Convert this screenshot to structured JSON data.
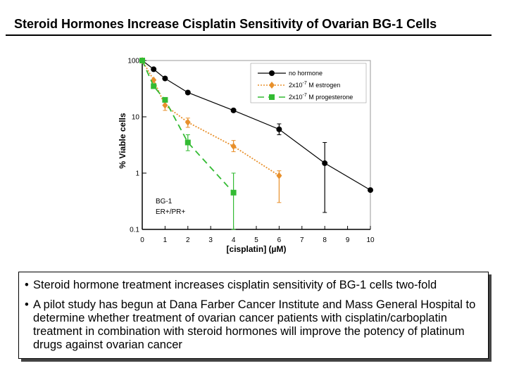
{
  "slide": {
    "title": "Steroid Hormones Increase Cisplatin Sensitivity of Ovarian BG-1 Cells"
  },
  "chart_data": {
    "type": "line",
    "title": "",
    "xlabel": "[cisplatin] (µM)",
    "ylabel": "% Viable cells",
    "y_scale": "log",
    "xlim": [
      0,
      10
    ],
    "ylim": [
      0.1,
      100
    ],
    "x_ticks": [
      "0",
      "1",
      "2",
      "3",
      "4",
      "5",
      "6",
      "7",
      "8",
      "9",
      "10"
    ],
    "y_ticks": [
      "0.1",
      "1",
      "10",
      "100"
    ],
    "annotation": {
      "line1": "BG-1",
      "line2": "ER+/PR+"
    },
    "series": [
      {
        "name": "no hormone",
        "color": "#000000",
        "marker": "circle",
        "dash": "solid",
        "legend_text": "no hormone",
        "x": [
          0,
          0.5,
          1,
          2,
          4,
          6,
          8,
          10
        ],
        "y": [
          100,
          70,
          48,
          27,
          13,
          6,
          1.5,
          0.5
        ],
        "err_low": [
          null,
          null,
          null,
          null,
          null,
          4.8,
          0.2,
          null
        ],
        "err_high": [
          null,
          null,
          null,
          null,
          null,
          7.5,
          3.5,
          null
        ]
      },
      {
        "name": "2x10-7 M estrogen",
        "color": "#E8902B",
        "marker": "diamond",
        "dash": "dotted",
        "legend_text": "2x10",
        "legend_exp": "-7",
        "legend_unit": "M estrogen",
        "x": [
          0,
          0.5,
          1,
          2,
          4,
          6
        ],
        "y": [
          100,
          45,
          16,
          8,
          3,
          0.9
        ],
        "err_low": [
          null,
          null,
          13,
          6.5,
          2.4,
          0.3
        ],
        "err_high": [
          null,
          null,
          19,
          9.5,
          3.8,
          1.1
        ]
      },
      {
        "name": "2x10-7 M progesterone",
        "color": "#33BB33",
        "marker": "square",
        "dash": "dashed",
        "legend_text": "2x10",
        "legend_exp": "-7",
        "legend_unit": "M progesterone",
        "x": [
          0,
          0.5,
          1,
          2,
          4
        ],
        "y": [
          100,
          35,
          20,
          3.5,
          0.45
        ],
        "err_low": [
          null,
          null,
          null,
          2.5,
          0.1
        ],
        "err_high": [
          null,
          null,
          null,
          4.8,
          1.0
        ]
      }
    ]
  },
  "bullets": [
    {
      "symbol": "•",
      "text": "Steroid hormone treatment increases cisplatin sensitivity of BG-1 cells two-fold"
    },
    {
      "symbol": "•",
      "text": "A pilot study has begun at Dana Farber Cancer Institute and Mass General Hospital to determine  whether treatment of ovarian cancer patients with cisplatin/carboplatin treatment in combination with steroid hormones will improve the potency of platinum drugs against ovarian cancer"
    }
  ]
}
